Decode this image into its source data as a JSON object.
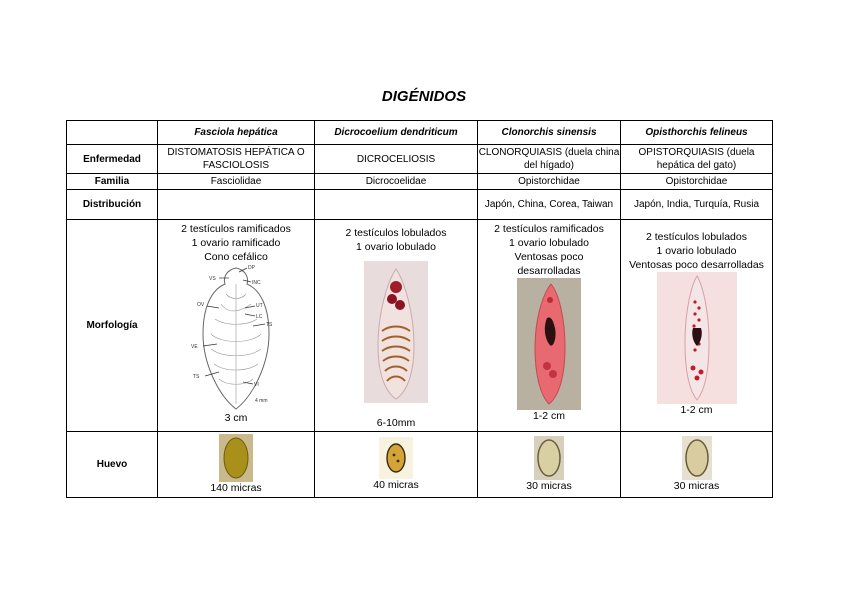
{
  "title": "DIGÉNIDOS",
  "columns": [
    "Fasciola hepática",
    "Dicrocoelium dendriticum",
    "Clonorchis sinensis",
    "Opisthorchis felineus"
  ],
  "row_labels": {
    "enfermedad": "Enfermedad",
    "familia": "Familia",
    "distribucion": "Distribución",
    "morfologia": "Morfología",
    "huevo": "Huevo"
  },
  "enfermedad": [
    "DISTOMATOSIS HEPÁTICA O FASCIOLOSIS",
    "DICROCELIOSIS",
    "CLONORQUIASIS (duela china del hígado)",
    "OPISTORQUIASIS (duela hepática del gato)"
  ],
  "familia": [
    "Fasciolidae",
    "Dicrocoelidae",
    "Opistorchidae",
    "Opistorchidae"
  ],
  "distribucion": [
    "",
    "",
    "Japón, China, Corea, Taiwan",
    "Japón, India, Turquía, Rusia"
  ],
  "morfologia": [
    {
      "lines": [
        "2 testículos ramificados",
        "1 ovario ramificado",
        "Cono cefálico"
      ],
      "size": "3 cm",
      "diagram_labels": [
        "DP",
        "VS",
        "INC",
        "OV",
        "UT",
        "LC",
        "TS",
        "VE",
        "TS",
        "VI",
        "4 mm"
      ]
    },
    {
      "lines": [
        "2 testículos lobulados",
        "1 ovario lobulado"
      ],
      "size": "6-10mm"
    },
    {
      "lines": [
        "2 testículos ramificados",
        "1 ovario lobulado",
        "Ventosas poco desarrolladas"
      ],
      "size": "1-2 cm"
    },
    {
      "lines": [
        "2 testículos lobulados",
        "1 ovario lobulado",
        "Ventosas poco desarrolladas"
      ],
      "size": "1-2 cm"
    }
  ],
  "huevo": [
    "140 micras",
    "40 micras",
    "30 micras",
    "30 micras"
  ]
}
